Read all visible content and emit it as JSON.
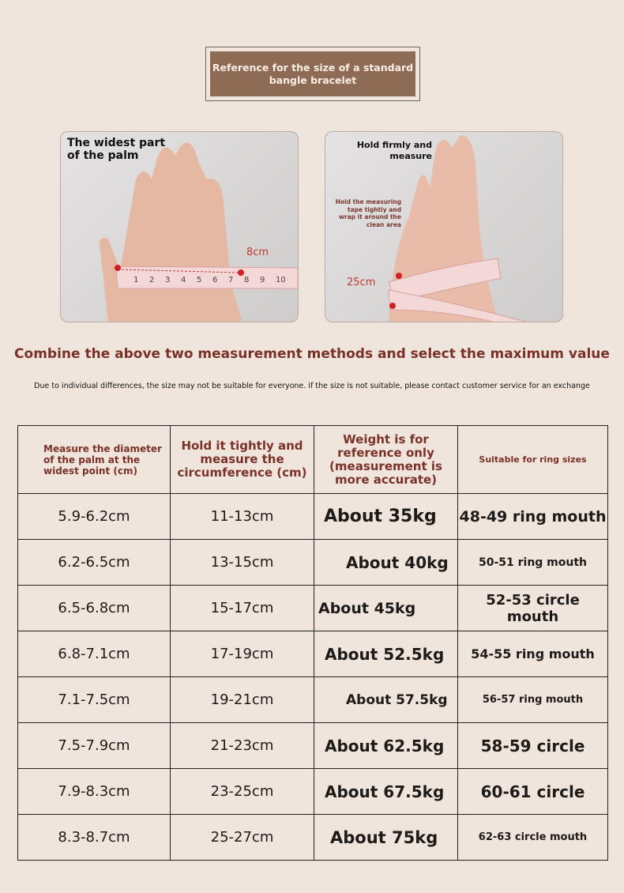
{
  "banner": {
    "title": "Reference for the size of a standard bangle bracelet"
  },
  "photos": [
    {
      "caption": "The widest part of the palm",
      "tape_label": "8cm"
    },
    {
      "caption": "Hold firmly and measure",
      "note": "Hold the measuring tape tightly and wrap it around the clean area",
      "tape_label": "25cm"
    }
  ],
  "headline": "Combine the above two measurement methods and select the maximum value",
  "disclaimer": "Due to individual differences, the size may not be suitable for everyone. if the size is not suitable, please contact customer service for an exchange",
  "table": {
    "headers": [
      "Measure the diameter of the palm at the widest point (cm)",
      "Hold it tightly and measure the circumference (cm)",
      "Weight is for reference only (measurement is more accurate)",
      "Suitable for ring sizes"
    ],
    "rows": [
      [
        "5.9-6.2cm",
        "11-13cm",
        "About 35kg",
        "48-49 ring mouth"
      ],
      [
        "6.2-6.5cm",
        "13-15cm",
        "About 40kg",
        "50-51 ring mouth"
      ],
      [
        "6.5-6.8cm",
        "15-17cm",
        "About 45kg",
        "52-53 circle mouth"
      ],
      [
        "6.8-7.1cm",
        "17-19cm",
        "About 52.5kg",
        "54-55 ring mouth"
      ],
      [
        "7.1-7.5cm",
        "19-21cm",
        "About 57.5kg",
        "56-57 ring mouth"
      ],
      [
        "7.5-7.9cm",
        "21-23cm",
        "About 62.5kg",
        "58-59 circle"
      ],
      [
        "7.9-8.3cm",
        "23-25cm",
        "About 67.5kg",
        "60-61 circle"
      ],
      [
        "8.3-8.7cm",
        "25-27cm",
        "About 75kg",
        "62-63 circle mouth"
      ]
    ]
  },
  "colors": {
    "background": "#f0e5dc",
    "banner": "#8e6b55",
    "accent_text": "#7a3128"
  }
}
